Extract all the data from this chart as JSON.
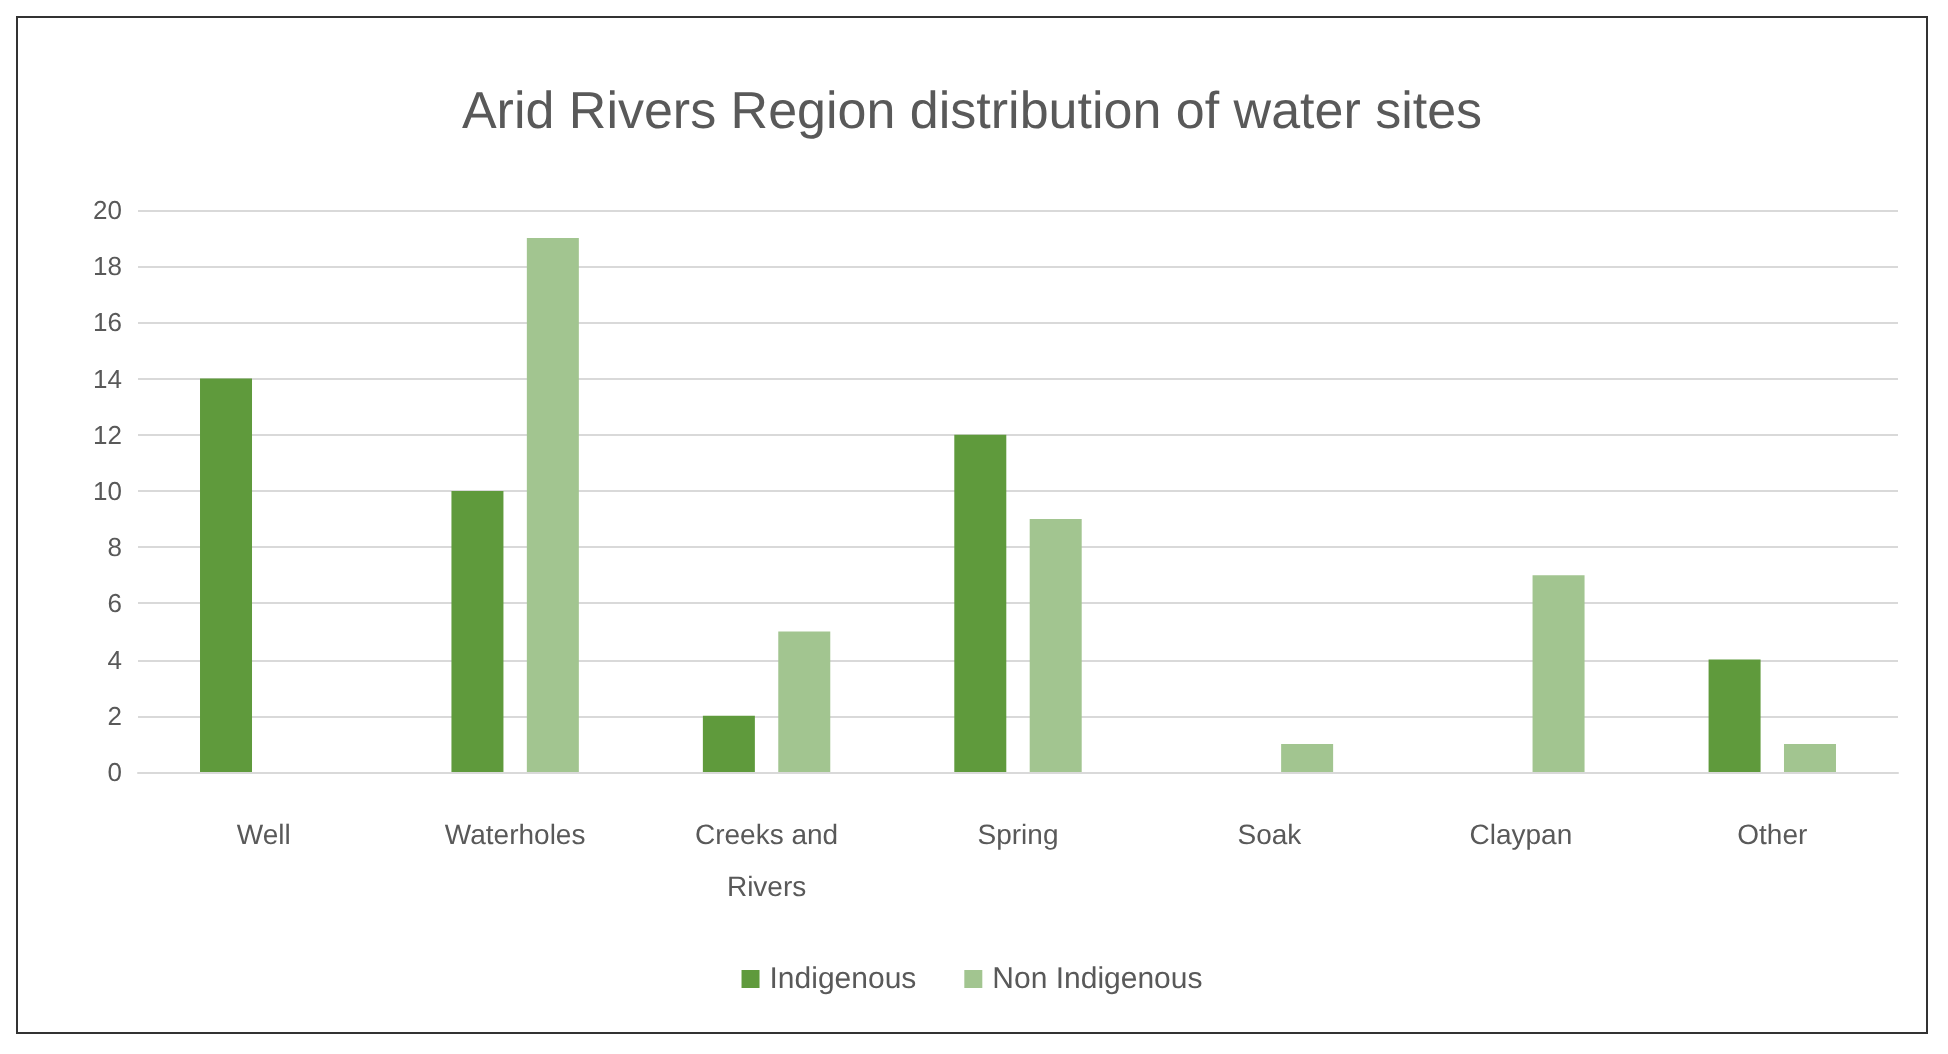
{
  "chart_data": {
    "type": "bar",
    "title": "Arid Rivers Region distribution of water sites",
    "categories": [
      "Well",
      "Waterholes",
      "Creeks and\nRivers",
      "Spring",
      "Soak",
      "Claypan",
      "Other"
    ],
    "series": [
      {
        "name": "Indigenous",
        "color": "#5f9a3c",
        "values": [
          14,
          10,
          2,
          12,
          null,
          null,
          4
        ]
      },
      {
        "name": "Non Indigenous",
        "color": "#a2c590",
        "values": [
          null,
          19,
          5,
          9,
          1,
          7,
          1
        ]
      }
    ],
    "ylim": [
      0,
      20
    ],
    "yticks": [
      0,
      2,
      4,
      6,
      8,
      10,
      12,
      14,
      16,
      18,
      20
    ],
    "grid": "y",
    "legend": "bottom"
  }
}
